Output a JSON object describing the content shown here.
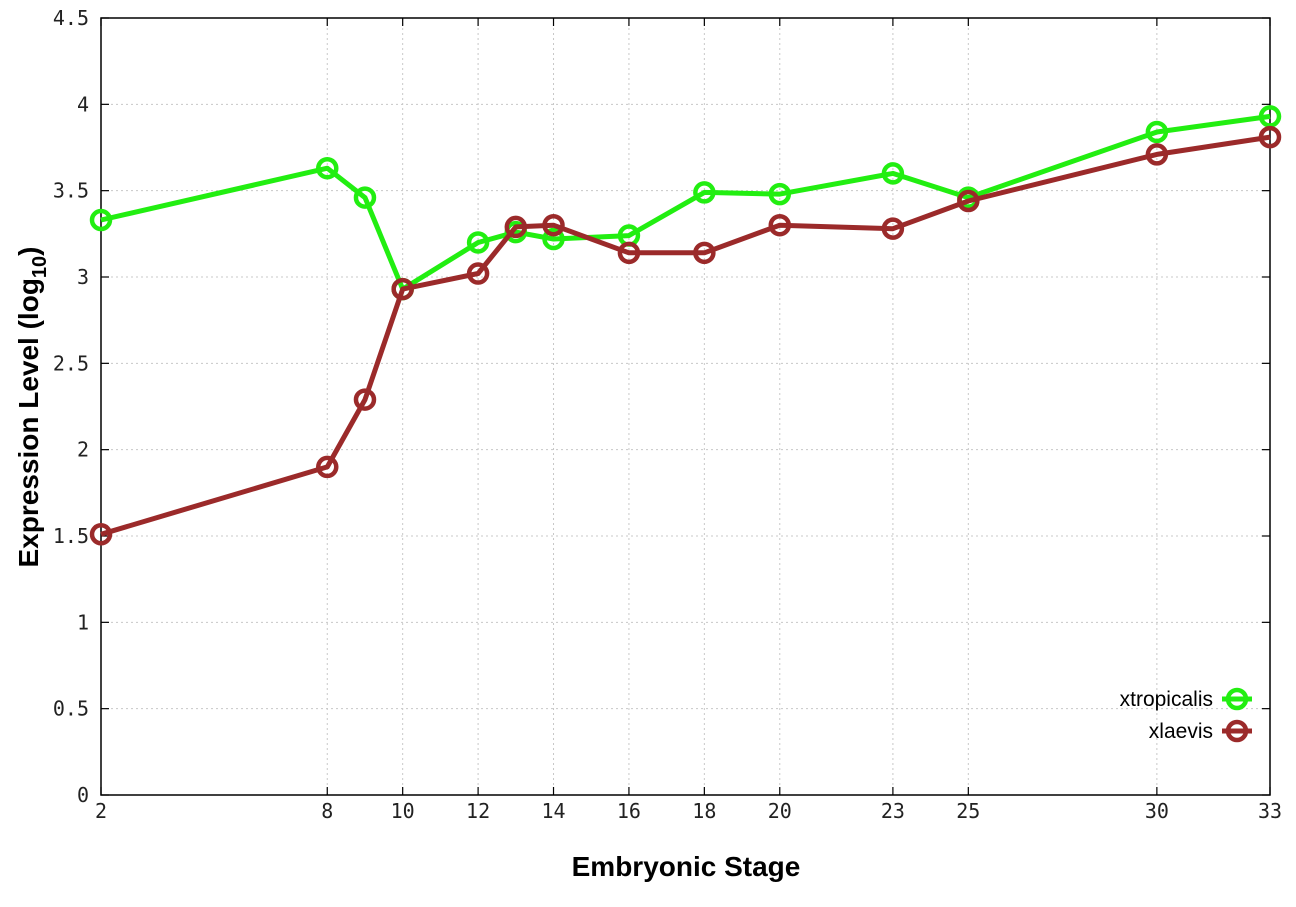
{
  "chart_data": {
    "type": "line",
    "xlabel": "Embryonic Stage",
    "ylabel_main": "Expression Level (log",
    "ylabel_sub": "10",
    "ylabel_close": ")",
    "ylim": [
      0,
      4.5
    ],
    "yticks": [
      0,
      0.5,
      1,
      1.5,
      2,
      2.5,
      3,
      3.5,
      4,
      4.5
    ],
    "ytick_labels": [
      "0",
      "0.5",
      "1",
      "1.5",
      "2",
      "2.5",
      "3",
      "3.5",
      "4",
      "4.5"
    ],
    "xlim": [
      2,
      33
    ],
    "xticks": [
      2,
      8,
      10,
      12,
      14,
      16,
      18,
      20,
      23,
      25,
      30,
      33
    ],
    "xtick_labels": [
      "2",
      "8",
      "10",
      "12",
      "14",
      "16",
      "18",
      "20",
      "23",
      "25",
      "30",
      "33"
    ],
    "grid": true,
    "legend_position": "bottom-right",
    "series": [
      {
        "name": "xtropicalis",
        "color": "#22ee11",
        "x": [
          2,
          8,
          9,
          10,
          12,
          13,
          14,
          16,
          18,
          20,
          23,
          25,
          30,
          33
        ],
        "y": [
          3.33,
          3.63,
          3.46,
          2.93,
          3.2,
          3.26,
          3.22,
          3.24,
          3.49,
          3.48,
          3.6,
          3.46,
          3.84,
          3.93
        ]
      },
      {
        "name": "xlaevis",
        "color": "#9b2a2a",
        "x": [
          2,
          8,
          9,
          10,
          12,
          13,
          14,
          16,
          18,
          20,
          23,
          25,
          30,
          33
        ],
        "y": [
          1.51,
          1.9,
          2.29,
          2.93,
          3.02,
          3.29,
          3.3,
          3.14,
          3.14,
          3.3,
          3.28,
          3.44,
          3.71,
          3.81
        ]
      }
    ]
  }
}
